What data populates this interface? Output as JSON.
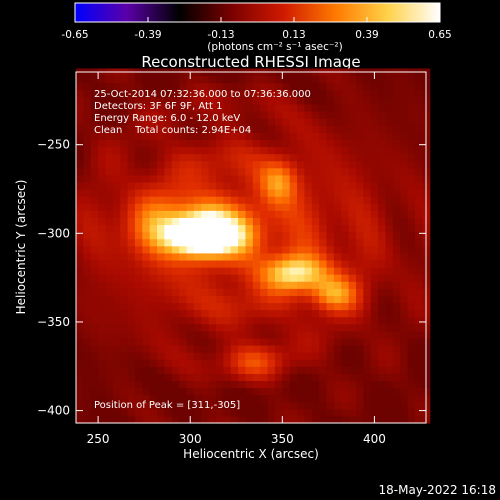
{
  "colorbar": {
    "ticks": [
      "-0.65",
      "-0.39",
      "-0.13",
      "0.13",
      "0.39",
      "0.65"
    ],
    "units": "(photons cm⁻² s⁻¹ asec⁻²)",
    "range": [
      -0.65,
      0.65
    ],
    "colors": [
      "#0000ff",
      "#5a00a8",
      "#000000",
      "#7a0000",
      "#d01a00",
      "#ff7a00",
      "#ffd24a",
      "#ffffff"
    ]
  },
  "chart_data": {
    "type": "heatmap",
    "title": "Reconstructed RHESSI Image",
    "xlabel": "Heliocentric X (arcsec)",
    "ylabel": "Heliocentric Y (arcsec)",
    "xlim": [
      238,
      428
    ],
    "ylim": [
      -407,
      -209
    ],
    "xticks": [
      250,
      300,
      350,
      400
    ],
    "yticks": [
      -250,
      -300,
      -350,
      -400
    ],
    "annotations": [
      "25-Oct-2014 07:32:36.000 to 07:36:36.000",
      "Detectors: 3F 6F 9F, Att 1",
      "Energy Range: 6.0 - 12.0 keV",
      "Clean    Total counts: 2.94E+04"
    ],
    "peak_label": "Position of Peak = [311,-305]",
    "sources": [
      {
        "x": 308,
        "y": -301,
        "amp": 0.65,
        "sx": 13,
        "sy": 7
      },
      {
        "x": 298,
        "y": -296,
        "amp": 0.35,
        "sx": 22,
        "sy": 12
      },
      {
        "x": 357,
        "y": -322,
        "amp": 0.42,
        "sx": 13,
        "sy": 7
      },
      {
        "x": 378,
        "y": -334,
        "amp": 0.33,
        "sx": 9,
        "sy": 7
      },
      {
        "x": 348,
        "y": -271,
        "amp": 0.24,
        "sx": 7,
        "sy": 9
      },
      {
        "x": 335,
        "y": -372,
        "amp": 0.2,
        "sx": 11,
        "sy": 7
      },
      {
        "x": 330,
        "y": -300,
        "amp": 0.22,
        "sx": 60,
        "sy": 45
      }
    ]
  },
  "footer": {
    "date": "18-May-2022 16:18"
  }
}
